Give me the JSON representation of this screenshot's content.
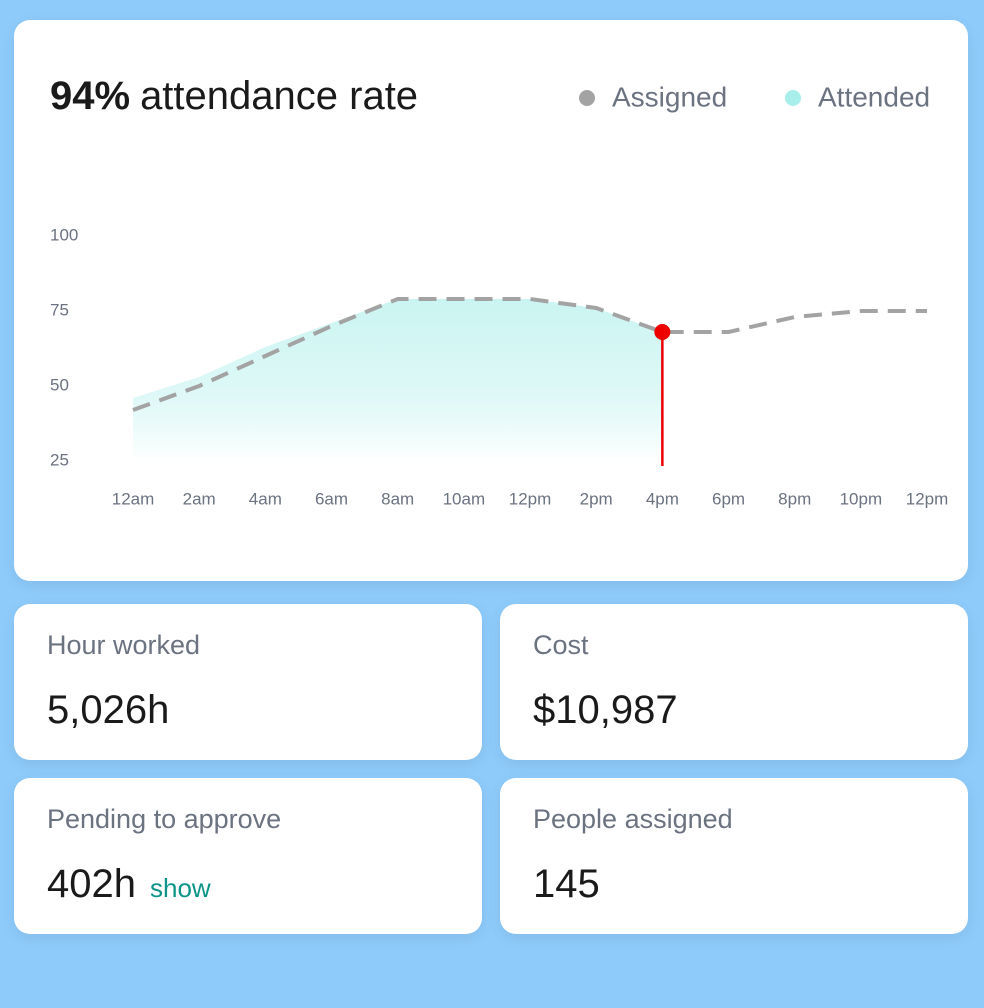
{
  "chart_data": {
    "type": "line",
    "title_value": "94%",
    "title_text": "attendance rate",
    "categories": [
      "12am",
      "2am",
      "4am",
      "6am",
      "8am",
      "10am",
      "12pm",
      "2pm",
      "4pm",
      "6pm",
      "8pm",
      "10pm",
      "12pm"
    ],
    "series": [
      {
        "name": "Assigned",
        "color": "#a3a3a3",
        "values": [
          42,
          50,
          60,
          70,
          79,
          79,
          79,
          76,
          68,
          68,
          73,
          75,
          75
        ]
      },
      {
        "name": "Attended",
        "color": "#a8efec",
        "values": [
          46,
          53,
          63,
          71,
          79,
          79,
          79,
          76,
          68,
          null,
          null,
          null,
          null
        ]
      }
    ],
    "ylim": [
      25,
      100
    ],
    "yticks": [
      25,
      50,
      75,
      100
    ],
    "grid": false,
    "legend": "top-right",
    "marker_color": "#ee0000"
  },
  "stats": [
    {
      "label": "Hour worked",
      "value": "5,026h"
    },
    {
      "label": "Cost",
      "value": "$10,987"
    },
    {
      "label": "Pending to approve",
      "value": "402h",
      "link": "show"
    },
    {
      "label": "People assigned",
      "value": "145"
    }
  ]
}
